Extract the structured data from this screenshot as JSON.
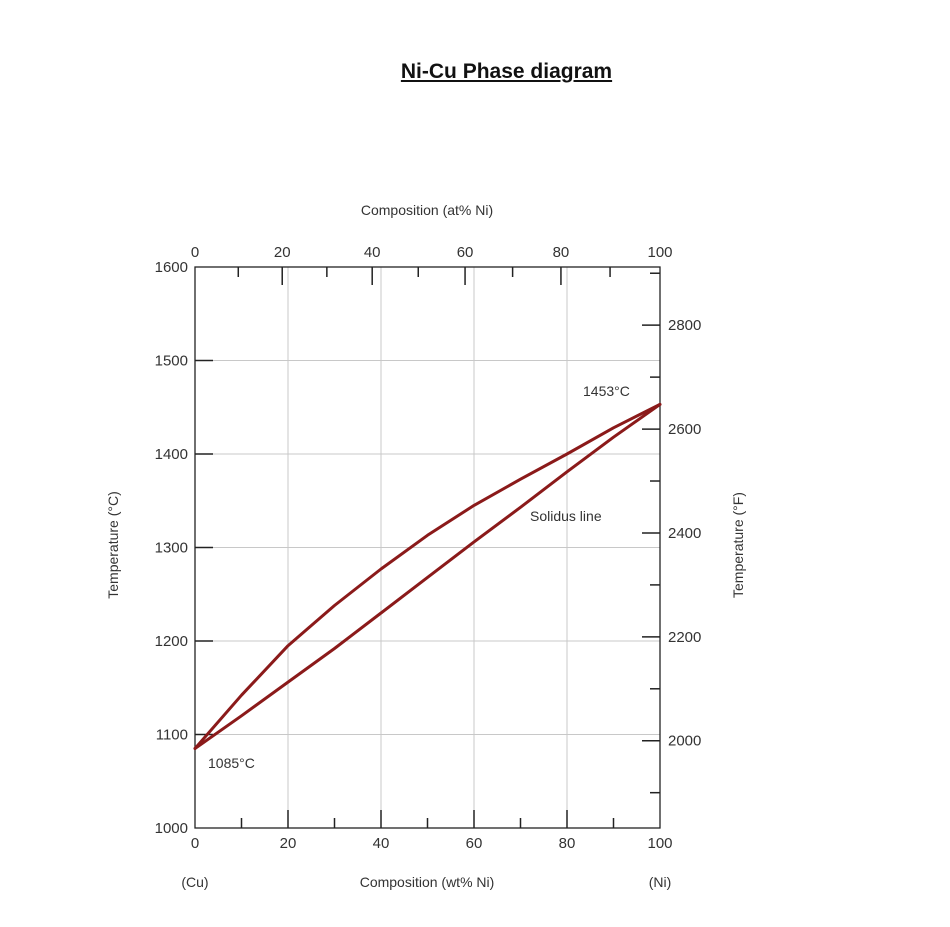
{
  "page": {
    "title": "Ni-Cu Phase diagram"
  },
  "chart_data": {
    "type": "line",
    "xlabel_bottom": "Composition (wt% Ni)",
    "xlabel_top": "Composition (at% Ni)",
    "ylabel_left": "Temperature (°C)",
    "ylabel_right": "Temperature (°F)",
    "xlim": [
      0,
      100
    ],
    "ylim": [
      1000,
      1600
    ],
    "grid": true,
    "x_ticks_bottom": [
      0,
      20,
      40,
      60,
      80,
      100
    ],
    "x_ticks_top": [
      0,
      20,
      40,
      60,
      80,
      100
    ],
    "y_ticks_left": [
      1000,
      1100,
      1200,
      1300,
      1400,
      1500,
      1600
    ],
    "y_ticks_right": [
      2000,
      2200,
      2400,
      2600,
      2800
    ],
    "endpoint_labels": {
      "left": "(Cu)",
      "right": "(Ni)"
    },
    "line_color": "#8b1a1a",
    "series": [
      {
        "x": [
          0,
          10,
          20,
          30,
          40,
          50,
          60,
          70,
          80,
          90,
          100
        ],
        "y": [
          1085,
          1142,
          1195,
          1238,
          1277,
          1313,
          1345,
          1373,
          1400,
          1428,
          1453
        ]
      },
      {
        "x": [
          0,
          10,
          20,
          30,
          40,
          50,
          60,
          70,
          80,
          90,
          100
        ],
        "y": [
          1085,
          1120,
          1156,
          1192,
          1230,
          1268,
          1306,
          1343,
          1381,
          1418,
          1453
        ]
      }
    ],
    "annotations": [
      {
        "text": "1453°C",
        "x": 100,
        "y": 1453
      },
      {
        "text": "Solidus line",
        "x": 82,
        "y": 1330
      },
      {
        "text": "1085°C",
        "x": 0,
        "y": 1085
      }
    ]
  }
}
